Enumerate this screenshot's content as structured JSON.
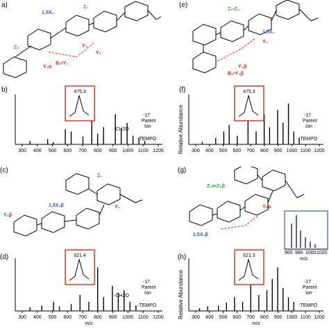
{
  "panels": {
    "a": {
      "label": "a)"
    },
    "b": {
      "label": "b)",
      "inset": "475.3",
      "minus17": "-17",
      "minus_ch2o": "-CH2O",
      "minus_tempo": "-TEMPO",
      "parent1": "Parent",
      "parent2": "Ion",
      "ticks": [
        "300",
        "400",
        "500",
        "600",
        "700",
        "800",
        "900",
        "1000",
        "1100",
        "1200"
      ]
    },
    "c": {
      "label": "(c)"
    },
    "d": {
      "label": "(d)",
      "inset": "621.4",
      "minus17": "-17",
      "minus_ch2o": "-CH2O",
      "minus_tempo": "-TEMPO",
      "parent1": "Parent",
      "parent2": "Ion",
      "xlabel": "m/z",
      "ticks": [
        "300",
        "400",
        "500",
        "600",
        "700",
        "800",
        "900",
        "1000",
        "1100",
        "1200"
      ]
    },
    "e": {
      "label": "(e)"
    },
    "f": {
      "label": "(f)",
      "inset": "475.3",
      "minus17": "-17",
      "minus_tempo": "-TEMPO",
      "parent1": "Parent",
      "parent2": "Ion",
      "ylabel": "Relative Abundance",
      "ticks": [
        "300",
        "400",
        "500",
        "600",
        "700",
        "800",
        "900",
        "1000",
        "1100",
        "1200"
      ]
    },
    "g": {
      "label": "(g)"
    },
    "h": {
      "label": "(h)",
      "inset": "621.3",
      "minus17": "-17",
      "minus_tempo": "-TEMPO",
      "parent1": "Parent",
      "parent2": "Ion",
      "ylabel": "Relative Abundance",
      "xlabel": "m/z",
      "ticks": [
        "300",
        "400",
        "500",
        "600",
        "700",
        "800",
        "900",
        "1000",
        "1100",
        "1200"
      ],
      "zoom_ticks": [
        "960",
        "980",
        "1000",
        "1020"
      ],
      "zoom_xlabel": "m/z"
    }
  },
  "colors": {
    "green": "#3aa53a",
    "red": "#e0261b",
    "blue": "#3a55c8",
    "purple": "#8c3fb8",
    "black": "#000000"
  }
}
